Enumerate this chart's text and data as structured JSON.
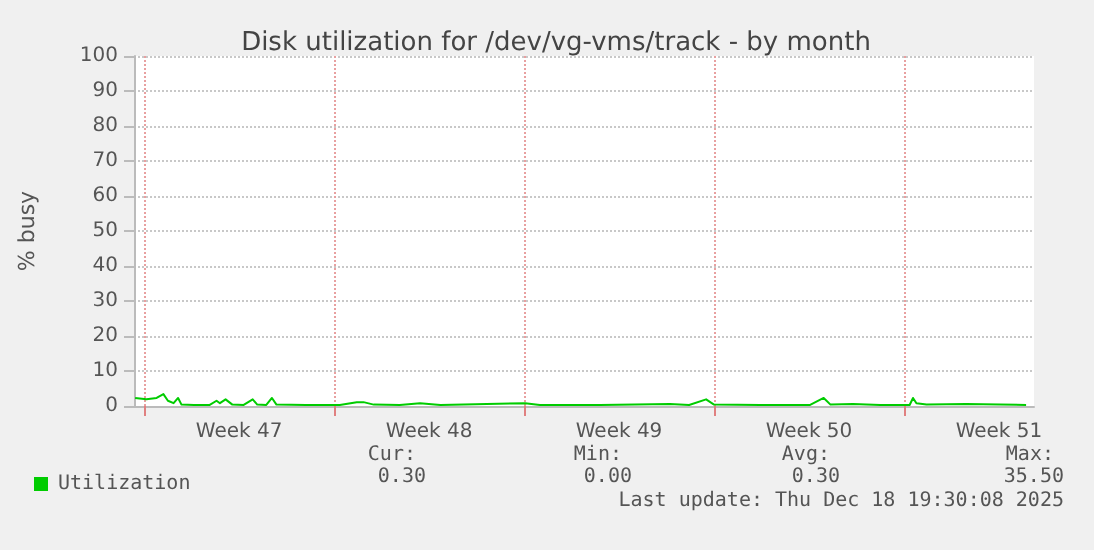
{
  "chart_data": {
    "type": "line",
    "title": "Disk utilization for /dev/vg-vms/track - by month",
    "ylabel": "% busy",
    "x": [
      "2025-11-16T16:00",
      "2025-11-17T02:00",
      "2025-11-17T11:00",
      "2025-11-17T17:00",
      "2025-11-17T21:00",
      "2025-11-18T02:00",
      "2025-11-18T06:00",
      "2025-11-18T09:00",
      "2025-11-18T20:00",
      "2025-11-19T10:00",
      "2025-11-19T16:00",
      "2025-11-19T19:00",
      "2025-11-20T00:00",
      "2025-11-20T06:00",
      "2025-11-20T16:00",
      "2025-11-21T00:00",
      "2025-11-21T04:00",
      "2025-11-21T12:00",
      "2025-11-21T17:00",
      "2025-11-21T21:00",
      "2025-11-22T23:00",
      "2025-11-24T05:00",
      "2025-11-24T20:00",
      "2025-11-25T02:00",
      "2025-11-25T11:00",
      "2025-11-26T10:00",
      "2025-11-27T04:00",
      "2025-11-27T22:00",
      "2025-12-01T01:00",
      "2025-12-01T14:00",
      "2025-12-03T19:00",
      "2025-12-06T09:00",
      "2025-12-07T02:00",
      "2025-12-07T17:00",
      "2025-12-08T00:00",
      "2025-12-09T17:00",
      "2025-12-11T13:00",
      "2025-12-12T01:00",
      "2025-12-12T07:00",
      "2025-12-13T03:00",
      "2025-12-14T03:00",
      "2025-12-15T05:00",
      "2025-12-15T08:00",
      "2025-12-15T11:00",
      "2025-12-15T20:00",
      "2025-12-17T07:00",
      "2025-12-18T13:00",
      "2025-12-19T12:00"
    ],
    "series": [
      {
        "name": "Utilization",
        "color": "#00cc00",
        "values": [
          2.3,
          1.9,
          2.3,
          3.4,
          1.5,
          0.8,
          2.3,
          0.4,
          0.3,
          0.3,
          1.5,
          0.8,
          1.9,
          0.4,
          0.3,
          1.9,
          0.4,
          0.3,
          2.3,
          0.4,
          0.3,
          0.3,
          1.1,
          1.1,
          0.4,
          0.3,
          0.8,
          0.3,
          0.8,
          0.3,
          0.3,
          0.6,
          0.3,
          1.9,
          0.4,
          0.3,
          0.3,
          2.3,
          0.4,
          0.6,
          0.3,
          0.3,
          2.3,
          0.8,
          0.4,
          0.6,
          0.4,
          0.3
        ]
      }
    ],
    "xlim": [
      "2025-11-16T15:00",
      "2025-12-19T19:00"
    ],
    "xticks": [
      {
        "value": "2025-11-17T00:00",
        "label": null
      },
      {
        "value": "2025-11-20T12:00",
        "label": "Week 47"
      },
      {
        "value": "2025-11-24T00:00",
        "label": null
      },
      {
        "value": "2025-11-27T12:00",
        "label": "Week 48"
      },
      {
        "value": "2025-12-01T00:00",
        "label": null
      },
      {
        "value": "2025-12-04T12:00",
        "label": "Week 49"
      },
      {
        "value": "2025-12-08T00:00",
        "label": null
      },
      {
        "value": "2025-12-11T12:00",
        "label": "Week 50"
      },
      {
        "value": "2025-12-15T00:00",
        "label": null
      },
      {
        "value": "2025-12-18T12:00",
        "label": "Week 51"
      }
    ],
    "ylim": [
      0,
      100
    ],
    "yticks": [
      0,
      10,
      20,
      30,
      40,
      50,
      60,
      70,
      80,
      90,
      100
    ],
    "grid": true,
    "legend": "bottom left",
    "marker": "none",
    "line_style": "solid",
    "annotations": [
      "Cur:",
      "Min:",
      "Avg:",
      "Max:",
      "0.30",
      "0.00",
      "0.30",
      "35.50",
      "Last update: Thu Dec 18 19:30:08 2025"
    ]
  }
}
